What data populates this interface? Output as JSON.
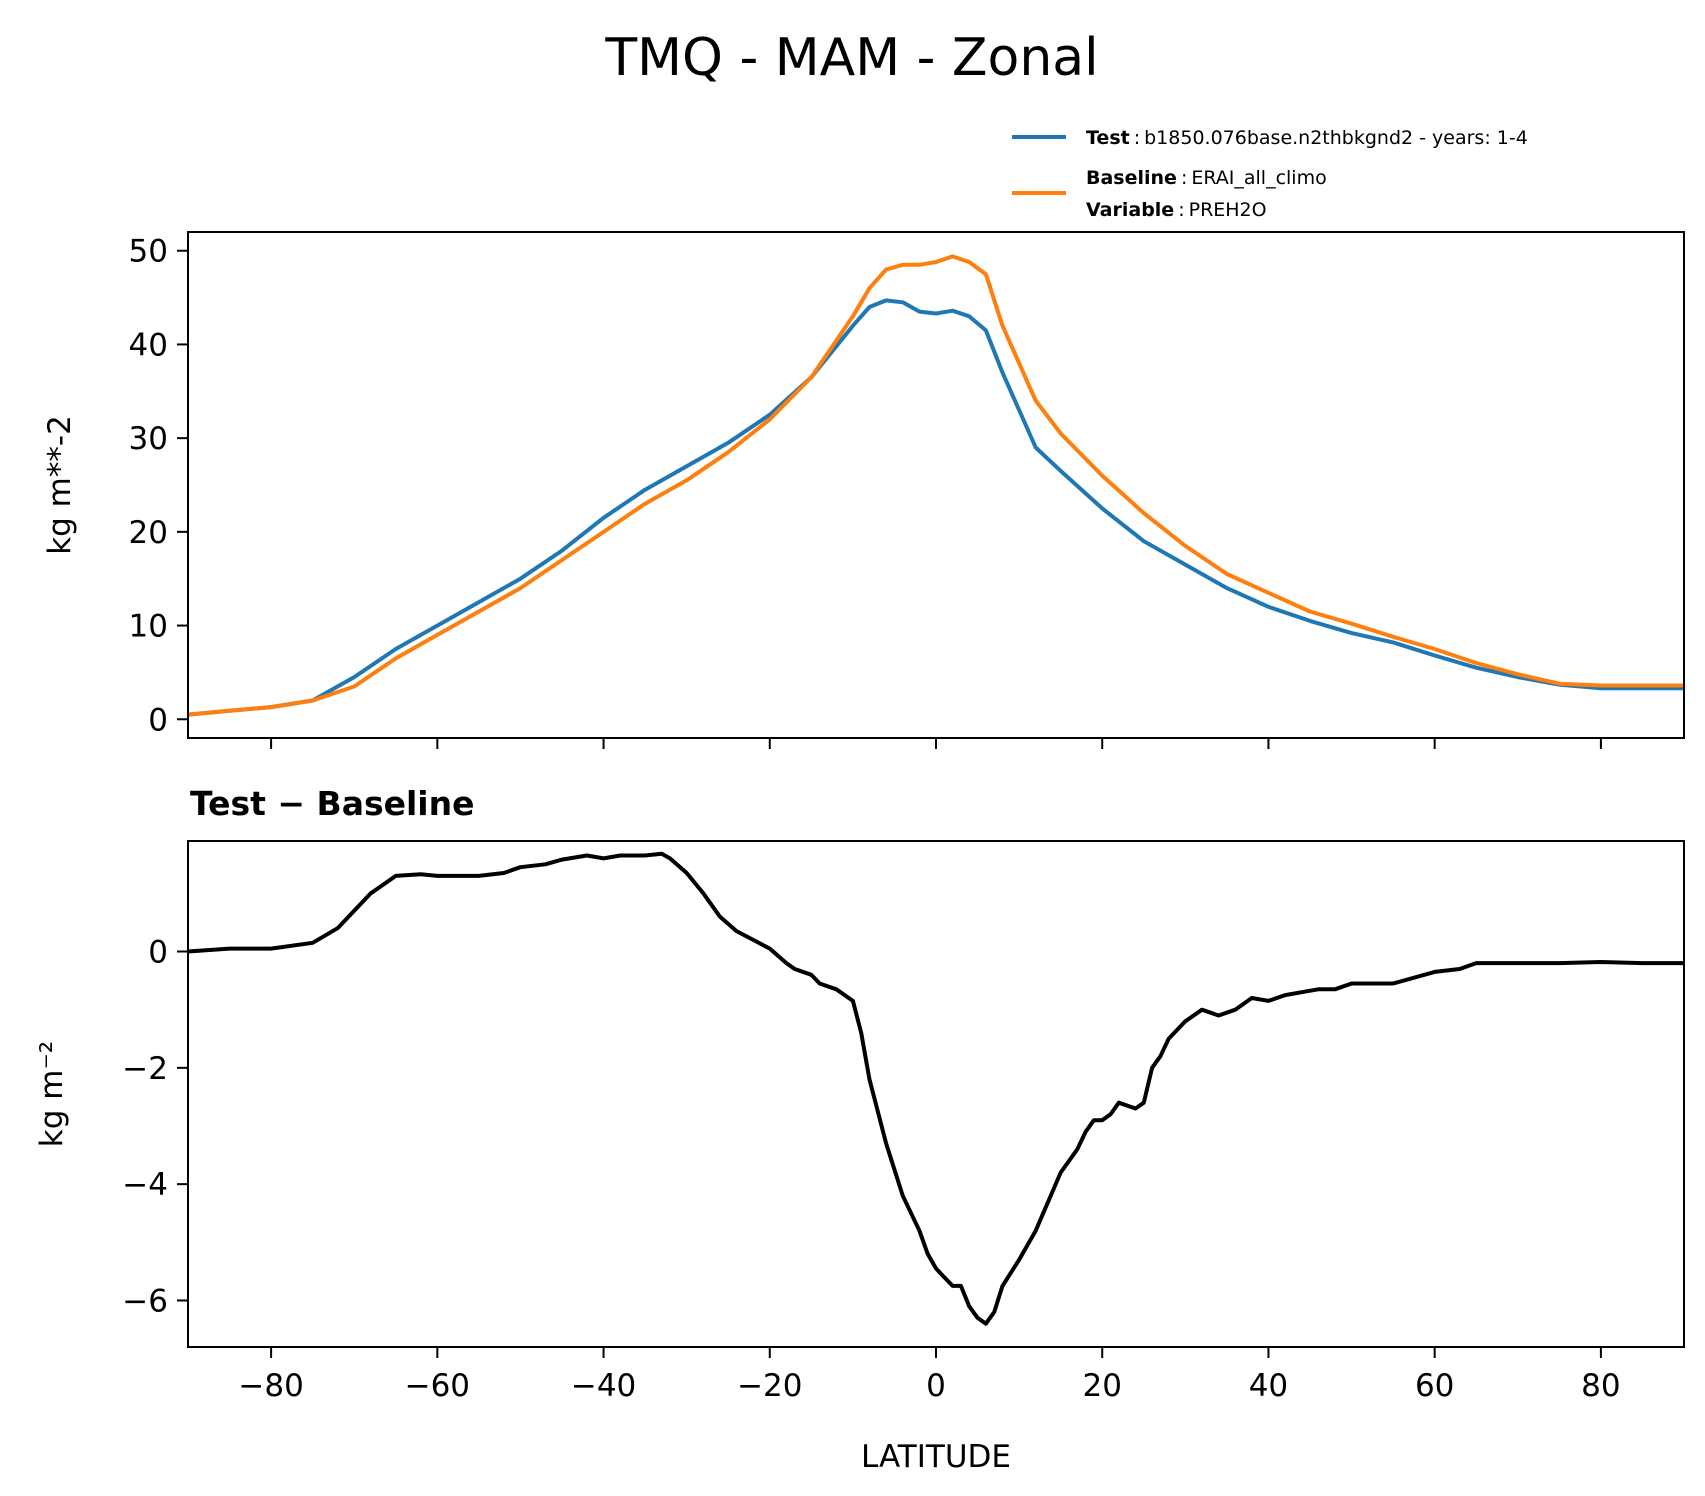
{
  "title": "TMQ - MAM - Zonal",
  "legend": {
    "test_key": "Test",
    "test_value": "b1850.076base.n2thbkgnd2 - years: 1-4",
    "baseline_key": "Baseline",
    "baseline_value": "ERAI_all_climo",
    "variable_key": "Variable",
    "variable_value": "PREH2O",
    "sep": ":"
  },
  "colors": {
    "test": "#1f77b4",
    "baseline": "#ff7f0e",
    "diff": "#000000"
  },
  "chart_data": [
    {
      "type": "line",
      "ylabel": "kg m**-2",
      "xlim": [
        -90,
        90
      ],
      "ylim": [
        -2,
        52
      ],
      "xticks": [
        -80,
        -60,
        -40,
        -20,
        0,
        20,
        40,
        60,
        80
      ],
      "yticks": [
        0,
        10,
        20,
        30,
        40,
        50
      ],
      "grid": false,
      "legend_placement": "above-right",
      "x": [
        -90,
        -85,
        -80,
        -75,
        -70,
        -65,
        -60,
        -55,
        -50,
        -45,
        -40,
        -35,
        -30,
        -25,
        -20,
        -15,
        -10,
        -8,
        -6,
        -4,
        -2,
        0,
        2,
        4,
        6,
        8,
        10,
        12,
        15,
        20,
        25,
        30,
        35,
        40,
        45,
        50,
        55,
        60,
        65,
        70,
        75,
        80,
        85,
        90
      ],
      "series": [
        {
          "name": "Test",
          "color": "#1f77b4",
          "values": [
            0.5,
            0.9,
            1.3,
            2.0,
            4.5,
            7.5,
            10.0,
            12.5,
            15.0,
            18.0,
            21.5,
            24.5,
            27.0,
            29.5,
            32.5,
            36.5,
            42.0,
            44.0,
            44.7,
            44.5,
            43.5,
            43.3,
            43.6,
            43.0,
            41.5,
            37.0,
            33.0,
            29.0,
            26.5,
            22.5,
            19.0,
            16.5,
            14.0,
            12.0,
            10.5,
            9.2,
            8.2,
            6.8,
            5.5,
            4.5,
            3.7,
            3.3,
            3.3,
            3.3
          ]
        },
        {
          "name": "Baseline",
          "color": "#ff7f0e",
          "values": [
            0.5,
            0.9,
            1.3,
            2.0,
            3.5,
            6.5,
            9.0,
            11.5,
            14.0,
            17.0,
            20.0,
            23.0,
            25.5,
            28.5,
            32.0,
            36.5,
            43.0,
            46.0,
            48.0,
            48.5,
            48.5,
            48.8,
            49.4,
            48.8,
            47.5,
            42.0,
            38.0,
            34.0,
            30.5,
            26.0,
            22.0,
            18.5,
            15.5,
            13.5,
            11.5,
            10.2,
            8.8,
            7.5,
            6.0,
            4.8,
            3.8,
            3.6,
            3.6,
            3.6
          ]
        }
      ]
    },
    {
      "type": "line",
      "title": "Test − Baseline",
      "ylabel": "kg m⁻²",
      "xlabel": "LATITUDE",
      "xlim": [
        -90,
        90
      ],
      "ylim": [
        -6.8,
        1.9
      ],
      "xticks": [
        -80,
        -60,
        -40,
        -20,
        0,
        20,
        40,
        60,
        80
      ],
      "xtick_labels": [
        "−80",
        "−60",
        "−40",
        "−20",
        "0",
        "20",
        "40",
        "60",
        "80"
      ],
      "yticks": [
        0,
        -2,
        -4,
        -6
      ],
      "ytick_labels": [
        "0",
        "−2",
        "−4",
        "−6"
      ],
      "grid": false,
      "x": [
        -90,
        -85,
        -80,
        -75,
        -72,
        -70,
        -68,
        -65,
        -62,
        -60,
        -55,
        -52,
        -50,
        -47,
        -45,
        -42,
        -40,
        -38,
        -35,
        -33,
        -32,
        -30,
        -28,
        -26,
        -24,
        -22,
        -20,
        -18,
        -17,
        -15,
        -14,
        -12,
        -10,
        -9,
        -8,
        -6,
        -4,
        -2,
        -1,
        0,
        1,
        2,
        3,
        4,
        5,
        6,
        7,
        8,
        10,
        12,
        15,
        17,
        18,
        19,
        20,
        21,
        22,
        24,
        25,
        26,
        27,
        28,
        30,
        32,
        34,
        36,
        38,
        40,
        42,
        44,
        46,
        48,
        50,
        55,
        60,
        63,
        65,
        70,
        75,
        80,
        85,
        90
      ],
      "series": [
        {
          "name": "Test − Baseline",
          "color": "#000000",
          "values": [
            0.0,
            0.05,
            0.05,
            0.15,
            0.4,
            0.7,
            1.0,
            1.3,
            1.33,
            1.3,
            1.3,
            1.35,
            1.45,
            1.5,
            1.58,
            1.65,
            1.6,
            1.65,
            1.65,
            1.68,
            1.6,
            1.35,
            1.0,
            0.6,
            0.35,
            0.2,
            0.05,
            -0.2,
            -0.3,
            -0.4,
            -0.55,
            -0.65,
            -0.85,
            -1.4,
            -2.2,
            -3.3,
            -4.2,
            -4.8,
            -5.2,
            -5.45,
            -5.6,
            -5.75,
            -5.75,
            -6.1,
            -6.3,
            -6.4,
            -6.2,
            -5.75,
            -5.3,
            -4.8,
            -3.8,
            -3.4,
            -3.1,
            -2.9,
            -2.9,
            -2.8,
            -2.6,
            -2.7,
            -2.6,
            -2.0,
            -1.8,
            -1.5,
            -1.2,
            -1.0,
            -1.1,
            -1.0,
            -0.8,
            -0.85,
            -0.75,
            -0.7,
            -0.65,
            -0.65,
            -0.55,
            -0.55,
            -0.35,
            -0.3,
            -0.2,
            -0.2,
            -0.2,
            -0.18,
            -0.2,
            -0.2
          ]
        }
      ]
    }
  ]
}
